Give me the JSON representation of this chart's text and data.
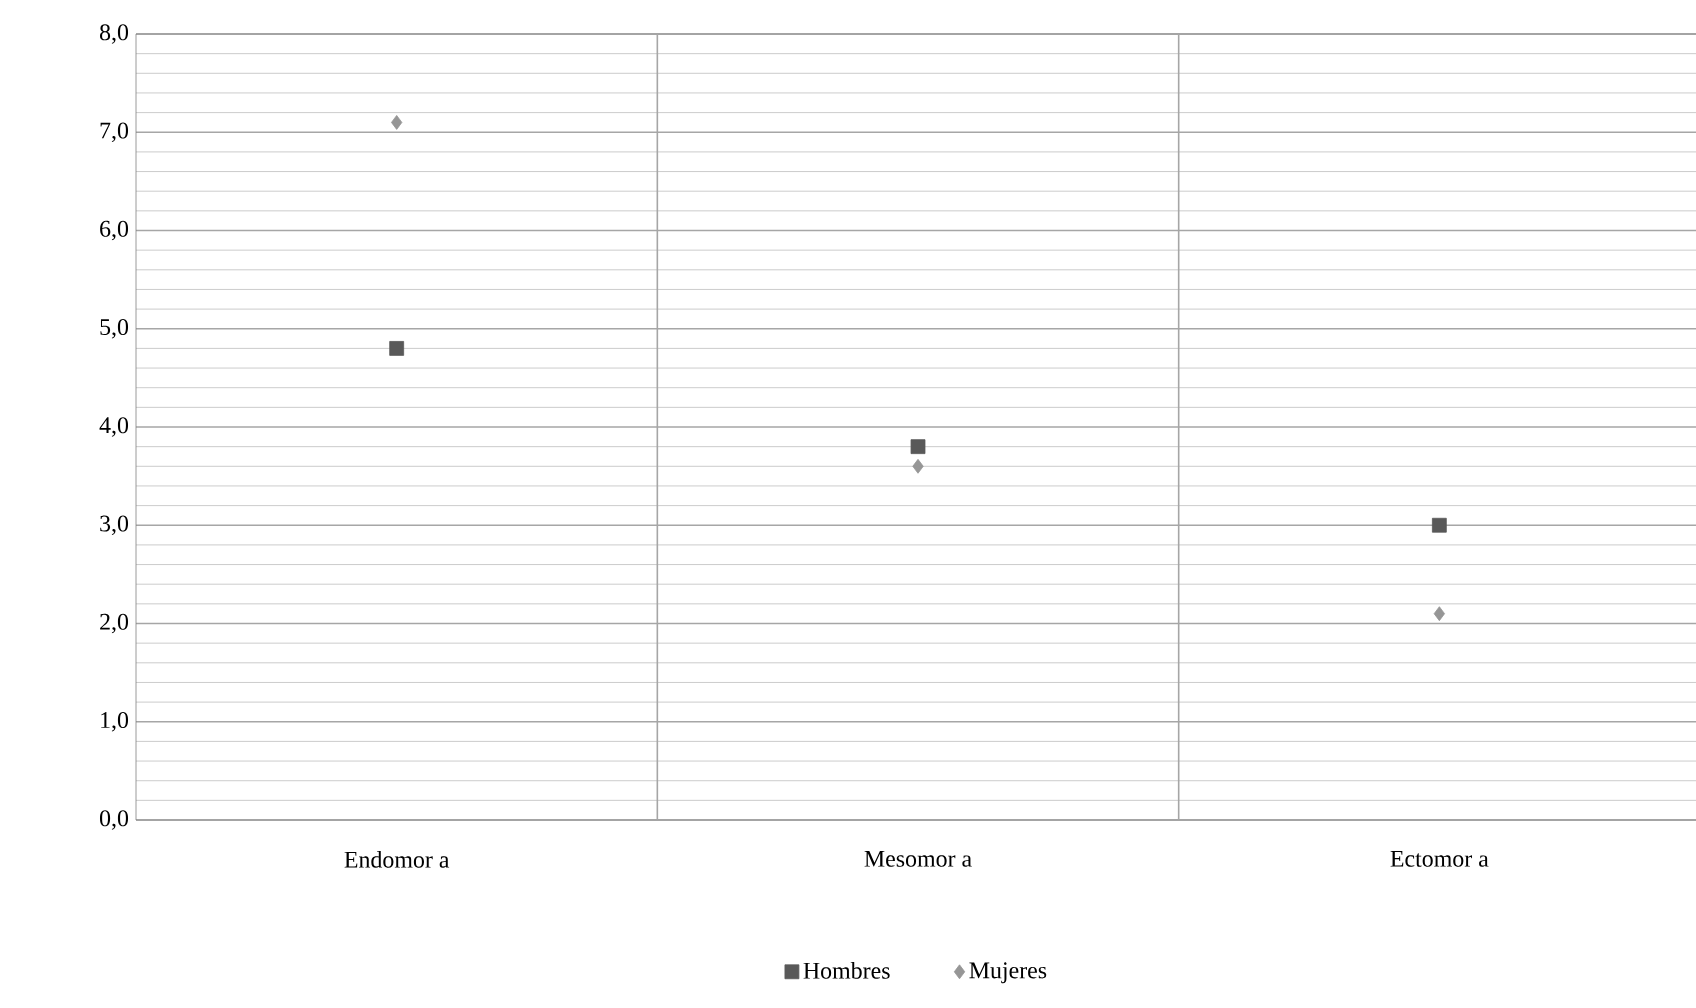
{
  "chart_data": {
    "type": "scatter",
    "categories": [
      "Endomor a",
      "Mesomor a",
      "Ectomor a"
    ],
    "series": [
      {
        "name": "Hombres",
        "color": "#595959",
        "marker": "square",
        "values": [
          4.8,
          3.8,
          3.0
        ]
      },
      {
        "name": "Mujeres",
        "color": "#969696",
        "marker": "diamond",
        "values": [
          7.1,
          3.6,
          2.1
        ]
      }
    ],
    "ylim": [
      0,
      8
    ],
    "yticks": [
      {
        "value": 0,
        "label": "0,0"
      },
      {
        "value": 1,
        "label": "1,0"
      },
      {
        "value": 2,
        "label": "2,0"
      },
      {
        "value": 3,
        "label": "3,0"
      },
      {
        "value": 4,
        "label": "4,0"
      },
      {
        "value": 5,
        "label": "5,0"
      },
      {
        "value": 6,
        "label": "6,0"
      },
      {
        "value": 7,
        "label": "7,0"
      },
      {
        "value": 8,
        "label": "8,0"
      }
    ],
    "grid": true,
    "legend": "bottom"
  }
}
